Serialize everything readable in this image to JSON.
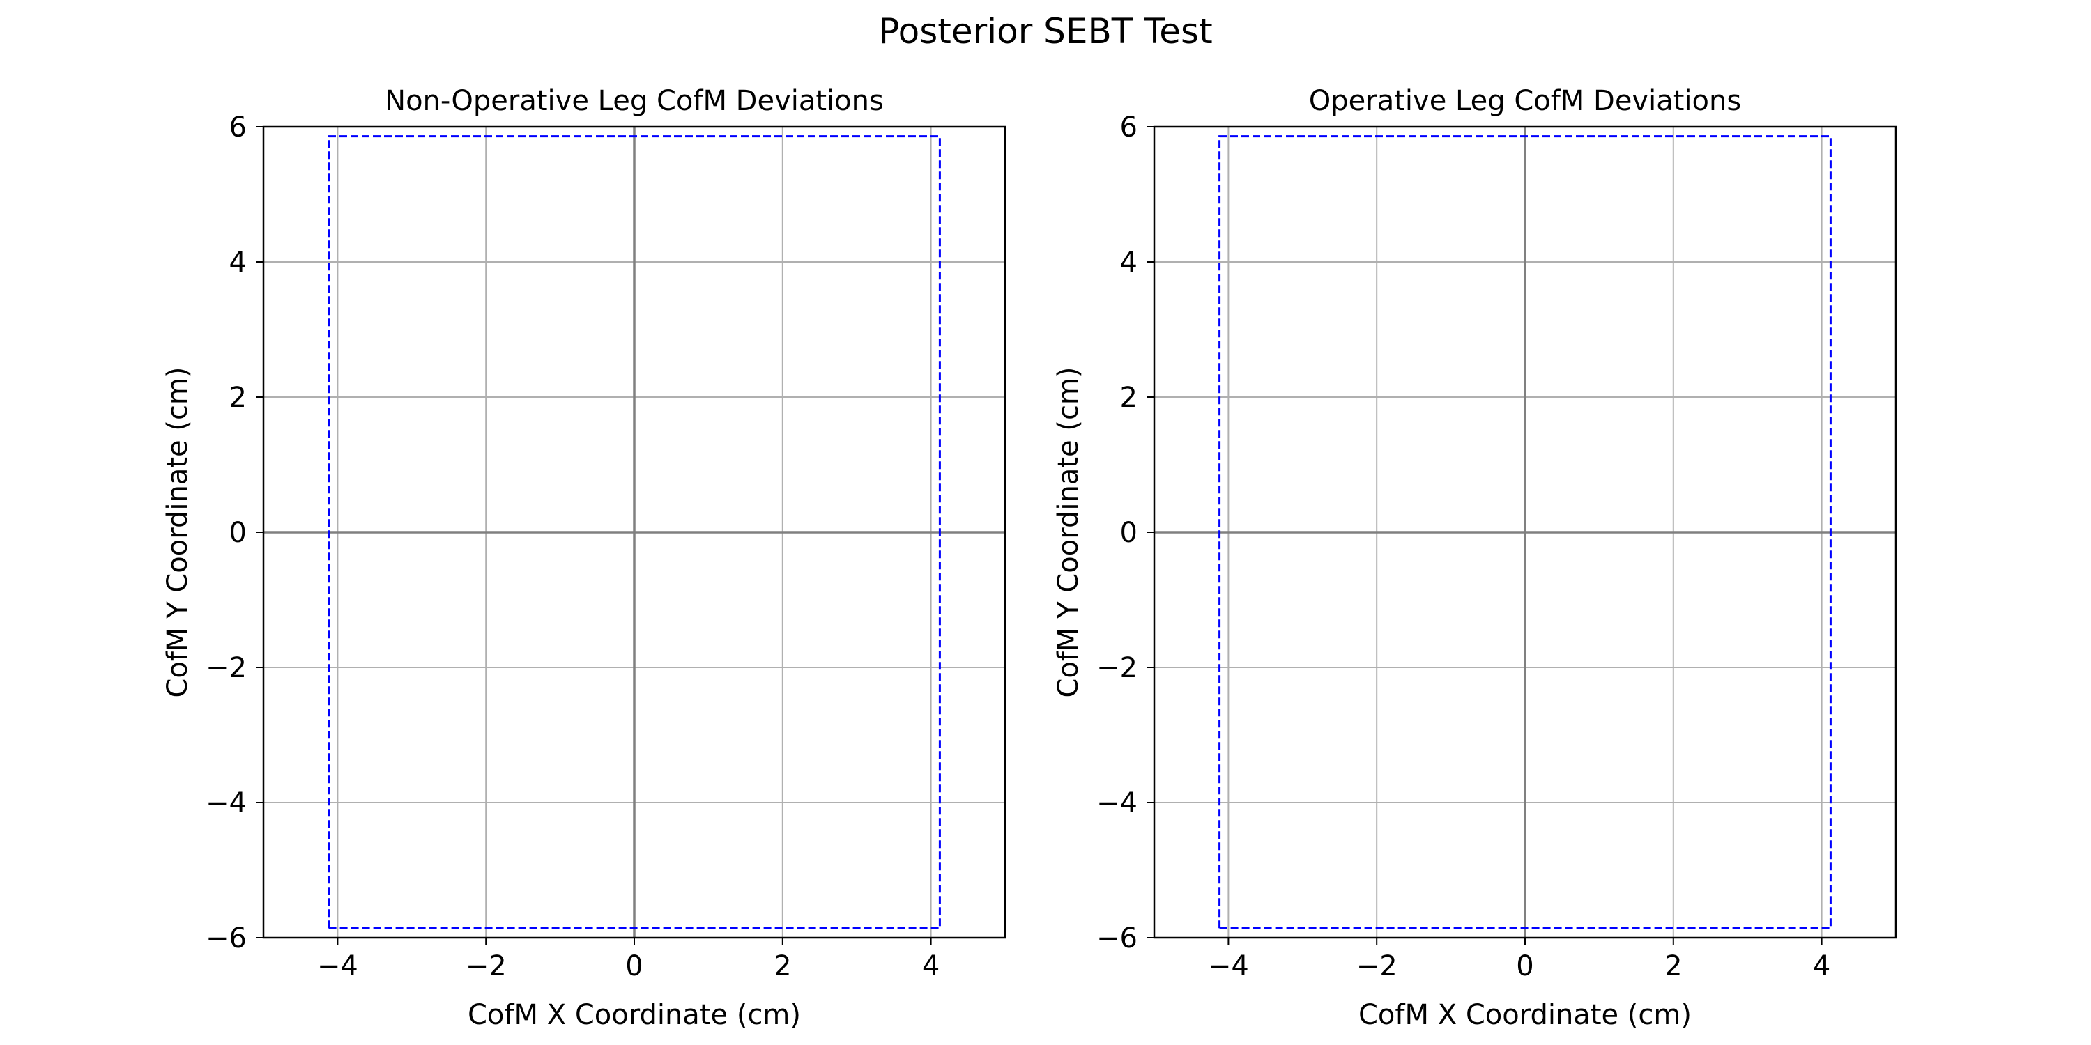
{
  "figure": {
    "title": "Posterior SEBT Test"
  },
  "chart_data": [
    {
      "type": "line",
      "title": "Non-Operative Leg CofM Deviations",
      "xlabel": "CofM X Coordinate (cm)",
      "ylabel": "CofM Y Coordinate (cm)",
      "xlim": [
        -5,
        5
      ],
      "ylim": [
        -6,
        6
      ],
      "xticks": [
        -4,
        -2,
        0,
        2,
        4
      ],
      "yticks": [
        -6,
        -4,
        -2,
        0,
        2,
        4,
        6
      ],
      "grid": true,
      "reference_lines": {
        "x": 0,
        "y": 0,
        "color": "#808080"
      },
      "series": [
        {
          "style": "dashed",
          "color": "#0000ff",
          "x": [
            -4.12,
            4.12,
            4.12,
            -4.12,
            -4.12
          ],
          "y": [
            -5.86,
            -5.86,
            5.86,
            5.86,
            -5.86
          ]
        }
      ]
    },
    {
      "type": "line",
      "title": "Operative Leg CofM Deviations",
      "xlabel": "CofM X Coordinate (cm)",
      "ylabel": "CofM Y Coordinate (cm)",
      "xlim": [
        -5,
        5
      ],
      "ylim": [
        -6,
        6
      ],
      "xticks": [
        -4,
        -2,
        0,
        2,
        4
      ],
      "yticks": [
        -6,
        -4,
        -2,
        0,
        2,
        4,
        6
      ],
      "grid": true,
      "reference_lines": {
        "x": 0,
        "y": 0,
        "color": "#808080"
      },
      "series": [
        {
          "style": "dashed",
          "color": "#0000ff",
          "x": [
            -4.12,
            4.12,
            4.12,
            -4.12,
            -4.12
          ],
          "y": [
            -5.86,
            -5.86,
            5.86,
            5.86,
            -5.86
          ]
        }
      ]
    }
  ]
}
